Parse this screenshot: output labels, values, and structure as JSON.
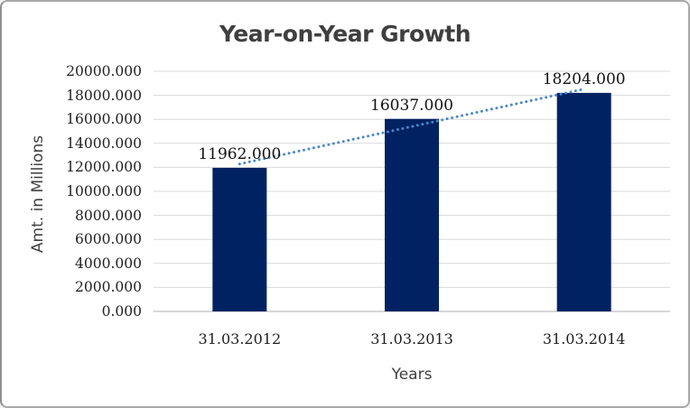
{
  "chart_data": {
    "type": "bar",
    "title": "Year-on-Year Growth",
    "xlabel": "Years",
    "ylabel": "Amt. in Millions",
    "categories": [
      "31.03.2012",
      "31.03.2013",
      "31.03.2014"
    ],
    "values": [
      11962,
      16037,
      18204
    ],
    "data_labels": [
      "11962.000",
      "16037.000",
      "18204.000"
    ],
    "ylim": [
      0,
      20000
    ],
    "y_tick_step": 2000,
    "y_tick_labels": [
      "0.000",
      "2000.000",
      "4000.000",
      "6000.000",
      "8000.000",
      "10000.000",
      "12000.000",
      "14000.000",
      "16000.000",
      "18000.000",
      "20000.000"
    ],
    "grid": "horizontal",
    "legend": "none",
    "trendline": {
      "type": "linear",
      "style": "dotted"
    },
    "colors": {
      "bar": "#002262",
      "trendline": "#4c87c8",
      "gridline": "#d9d9d9",
      "axis_line": "#bfbfbf",
      "tick_text": "#1f1f1f",
      "title_text": "#3f3f3f"
    }
  }
}
